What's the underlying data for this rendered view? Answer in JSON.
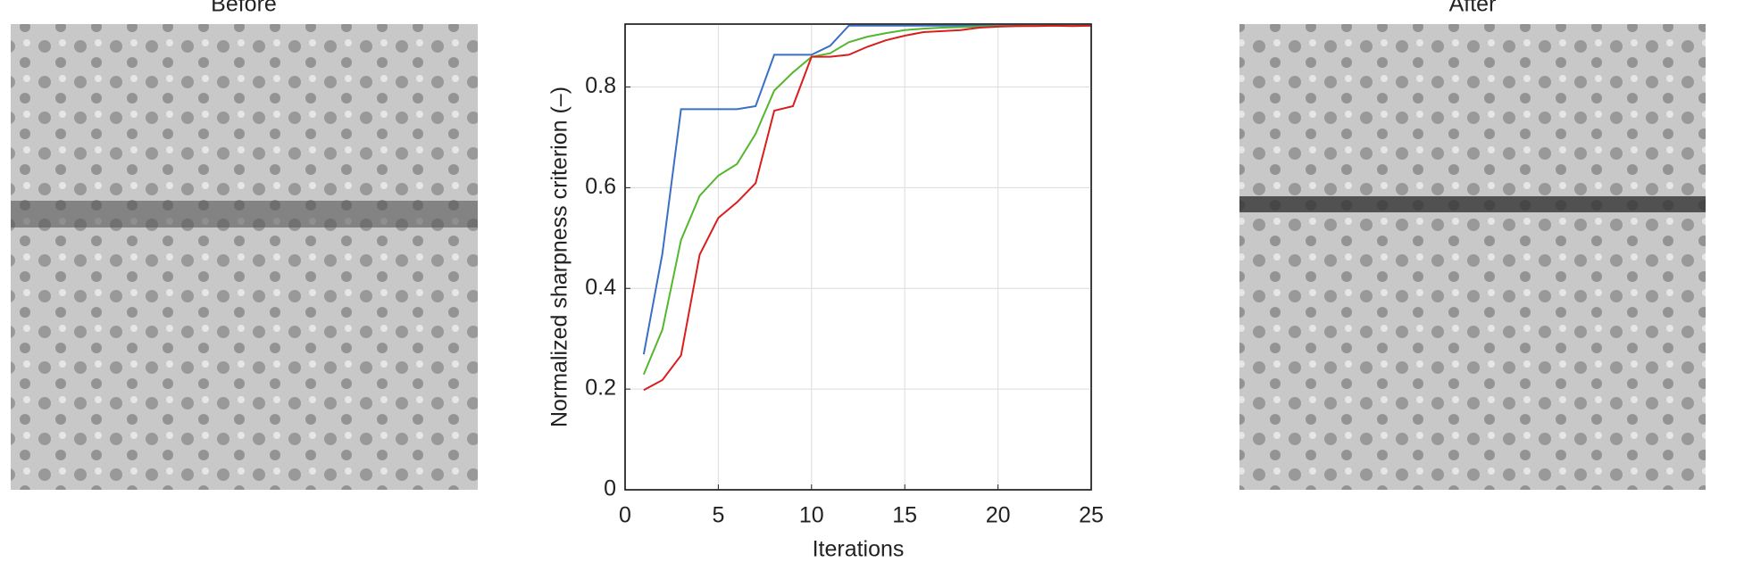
{
  "panels": {
    "before": {
      "title": "Before"
    },
    "after": {
      "title": "After"
    }
  },
  "chart_data": {
    "type": "line",
    "x_label": "Iterations",
    "y_label": "Normalized sharpness criterion (–)",
    "x": [
      1,
      2,
      3,
      4,
      5,
      6,
      7,
      8,
      9,
      10,
      11,
      12,
      13,
      14,
      15,
      16,
      17,
      18,
      19,
      20,
      21,
      22,
      23,
      24,
      25
    ],
    "series": [
      {
        "color": "#3a6fc4",
        "values": [
          0.269,
          0.469,
          0.756,
          0.756,
          0.756,
          0.756,
          0.762,
          0.864,
          0.864,
          0.864,
          0.882,
          0.922,
          0.922,
          0.922,
          0.922,
          0.922,
          0.922,
          0.922,
          0.922,
          0.922,
          0.922,
          0.922,
          0.922,
          0.922,
          0.922
        ]
      },
      {
        "color": "#55b630",
        "values": [
          0.229,
          0.318,
          0.496,
          0.584,
          0.624,
          0.647,
          0.707,
          0.793,
          0.829,
          0.86,
          0.867,
          0.889,
          0.9,
          0.907,
          0.913,
          0.916,
          0.918,
          0.919,
          0.92,
          0.921,
          0.921,
          0.922,
          0.922,
          0.922,
          0.922
        ]
      },
      {
        "color": "#d81e1e",
        "values": [
          0.198,
          0.218,
          0.267,
          0.467,
          0.54,
          0.571,
          0.609,
          0.753,
          0.762,
          0.86,
          0.86,
          0.864,
          0.88,
          0.893,
          0.902,
          0.909,
          0.911,
          0.913,
          0.918,
          0.92,
          0.921,
          0.921,
          0.922,
          0.921,
          0.922
        ]
      }
    ],
    "xlim": [
      0,
      25
    ],
    "ylim": [
      0,
      0.925
    ],
    "xticks": [
      0,
      5,
      10,
      15,
      20,
      25
    ],
    "yticks": [
      0,
      0.2,
      0.4,
      0.6,
      0.8
    ],
    "grid": true
  }
}
